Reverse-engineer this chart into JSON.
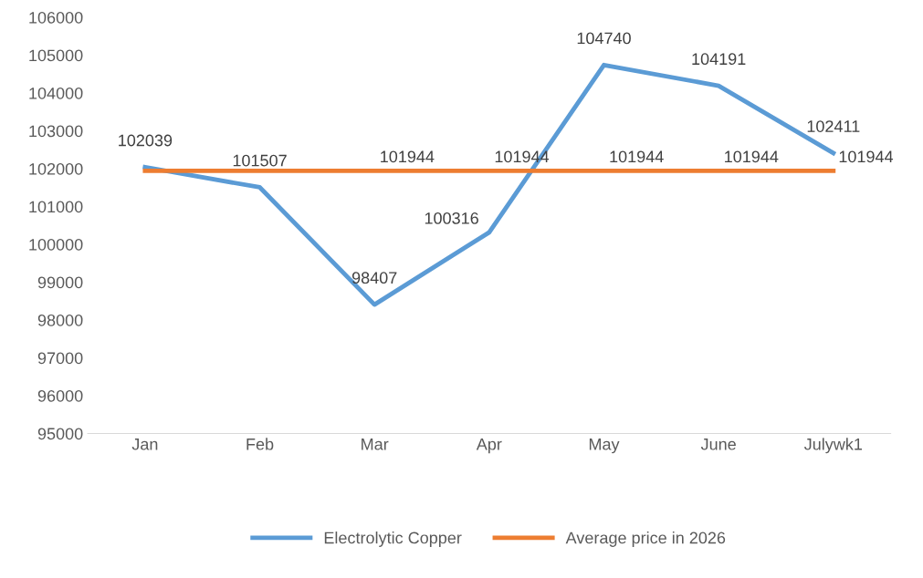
{
  "chart_data": {
    "type": "line",
    "categories": [
      "Jan",
      "Feb",
      "Mar",
      "Apr",
      "May",
      "June",
      "Julywk1"
    ],
    "series": [
      {
        "name": "Electrolytic Copper",
        "color": "#5b9bd5",
        "values": [
          102039,
          101507,
          98407,
          100316,
          104740,
          104191,
          102411
        ],
        "value_labels": [
          "102039",
          "101507",
          "98407",
          "100316",
          "104740",
          "104191",
          "102411"
        ]
      },
      {
        "name": "Average price in 2026",
        "color": "#ed7d31",
        "values": [
          101944,
          101944,
          101944,
          101944,
          101944,
          101944,
          101944
        ],
        "value_labels": [
          null,
          null,
          "101944",
          "101944",
          "101944",
          "101944",
          "101944"
        ]
      }
    ],
    "ylim": [
      95000,
      106000
    ],
    "yticks": [
      95000,
      96000,
      97000,
      98000,
      99000,
      100000,
      101000,
      102000,
      103000,
      104000,
      105000,
      106000
    ],
    "grid": false,
    "legend": "bottom",
    "marker": "none",
    "line_style": "solid"
  }
}
